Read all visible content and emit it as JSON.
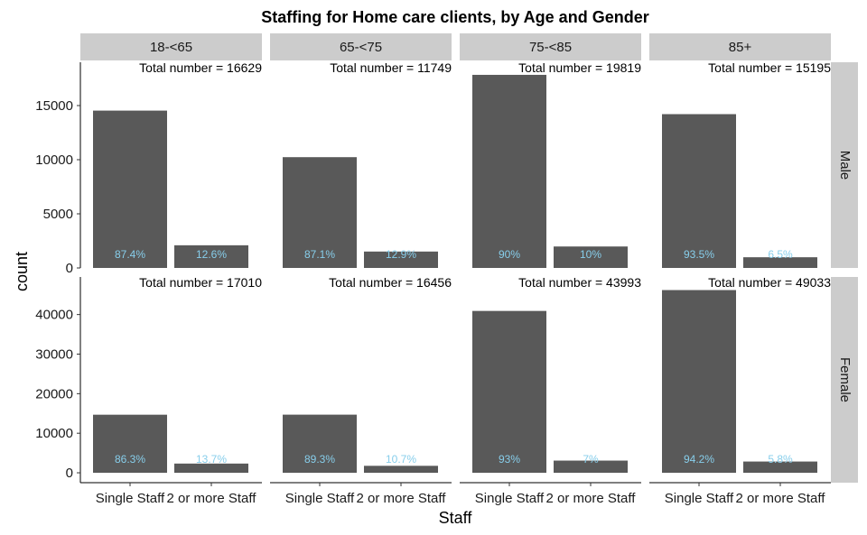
{
  "colors": {
    "bar": "#595959",
    "percent_label": "#87ceeb",
    "strip_background": "#cccccc",
    "axis_line": "#000000"
  },
  "chart_data": {
    "type": "bar",
    "title": "Staffing for Home care clients, by Age and Gender",
    "xlabel": "Staff",
    "ylabel": "count",
    "facet_columns": [
      "18-<65",
      "65-<75",
      "75-<85",
      "85+"
    ],
    "facet_rows": [
      "Male",
      "Female"
    ],
    "categories": [
      "Single Staff",
      "2 or more Staff"
    ],
    "x_tick_labels": [
      "Single Staff",
      "2 or more Staff"
    ],
    "grid": false,
    "rows": [
      {
        "name": "Male",
        "ylim": [
          0,
          19000
        ],
        "y_ticks": [
          0,
          5000,
          10000,
          15000
        ],
        "panels": [
          {
            "age": "18-<65",
            "total_label": "Total number = 16629",
            "values": [
              14534,
              2095
            ],
            "percent_labels": [
              "87.4%",
              "12.6%"
            ]
          },
          {
            "age": "65-<75",
            "total_label": "Total number = 11749",
            "values": [
              10233,
              1516
            ],
            "percent_labels": [
              "87.1%",
              "12.9%"
            ]
          },
          {
            "age": "75-<85",
            "total_label": "Total number = 19819",
            "values": [
              17837,
              1982
            ],
            "percent_labels": [
              "90%",
              "10%"
            ]
          },
          {
            "age": "85+",
            "total_label": "Total number = 15195",
            "values": [
              14207,
              988
            ],
            "percent_labels": [
              "93.5%",
              "6.5%"
            ]
          }
        ]
      },
      {
        "name": "Female",
        "ylim": [
          -2500,
          49500
        ],
        "y_ticks": [
          0,
          10000,
          20000,
          30000,
          40000
        ],
        "panels": [
          {
            "age": "18-<65",
            "total_label": "Total number = 17010",
            "values": [
              14680,
              2330
            ],
            "percent_labels": [
              "86.3%",
              "13.7%"
            ]
          },
          {
            "age": "65-<75",
            "total_label": "Total number = 16456",
            "values": [
              14695,
              1761
            ],
            "percent_labels": [
              "89.3%",
              "10.7%"
            ]
          },
          {
            "age": "75-<85",
            "total_label": "Total number = 43993",
            "values": [
              40913,
              3080
            ],
            "percent_labels": [
              "93%",
              "7%"
            ]
          },
          {
            "age": "85+",
            "total_label": "Total number = 49033",
            "values": [
              46189,
              2844
            ],
            "percent_labels": [
              "94.2%",
              "5.8%"
            ]
          }
        ]
      }
    ]
  }
}
